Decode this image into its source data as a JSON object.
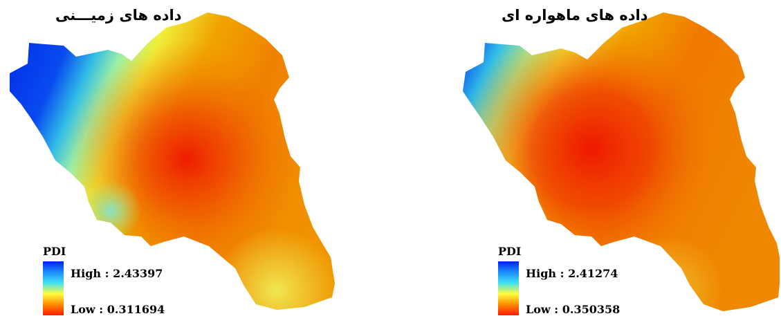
{
  "maps": [
    {
      "title": "داده های زمیـــنی",
      "legend": {
        "title": "PDI",
        "high_label": "High : 2.43397",
        "low_label": "Low : 0.311694"
      }
    },
    {
      "title": "داده های ماهواره ای",
      "legend": {
        "title": "PDI",
        "high_label": "High : 2.41274",
        "low_label": "Low : 0.350358"
      }
    }
  ],
  "color_ramp": {
    "high": "#0022f0",
    "stops": [
      "#0022f0",
      "#1e8cff",
      "#40e0f0",
      "#ffff40",
      "#ff8c00",
      "#ff1a00"
    ],
    "low": "#ff1a00"
  }
}
